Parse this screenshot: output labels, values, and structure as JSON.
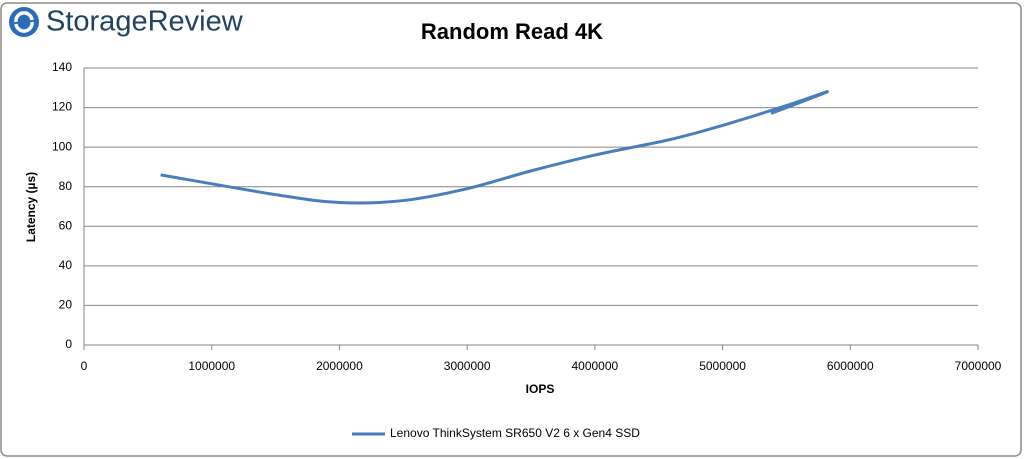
{
  "logo": "StorageReview",
  "chart_data": {
    "type": "line",
    "title": "Random Read 4K",
    "x_label": "IOPS",
    "y_label": "Latency (µs)",
    "xlim": [
      0,
      7000000
    ],
    "xticks": [
      0,
      1000000,
      2000000,
      3000000,
      4000000,
      5000000,
      6000000,
      7000000
    ],
    "ylim": [
      0,
      140
    ],
    "yticks": [
      0,
      20,
      40,
      60,
      80,
      100,
      120,
      140
    ],
    "grid": true,
    "legend": "bottom",
    "series": [
      {
        "name": "Lenovo ThinkSystem SR650 V2 6 x Gen4 SSD",
        "color": "#4a7ebb",
        "x": [
          600000,
          1500000,
          2000000,
          2500000,
          3000000,
          3500000,
          4000000,
          4600000,
          5000000,
          5500000,
          5820000,
          5380000
        ],
        "values": [
          86,
          76,
          72,
          73,
          79,
          88,
          96,
          104,
          111,
          121,
          128,
          117
        ]
      }
    ]
  }
}
